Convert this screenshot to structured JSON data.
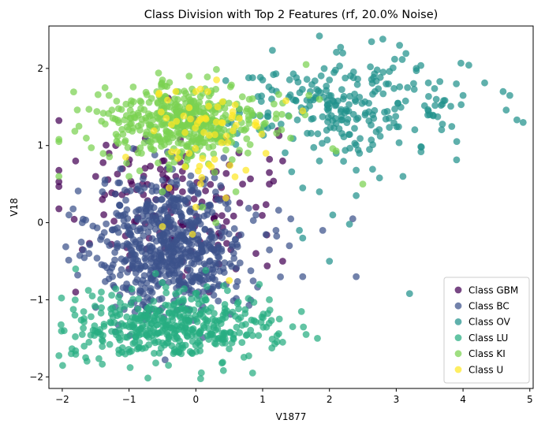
{
  "chart_data": {
    "type": "scatter",
    "title": "Class Division with Top 2 Features (rf, 20.0% Noise)",
    "xlabel": "V1877",
    "ylabel": "V18",
    "xlim": [
      -2.2,
      5.05
    ],
    "ylim": [
      -2.15,
      2.55
    ],
    "xticks": [
      -2,
      -1,
      0,
      1,
      2,
      3,
      4,
      5
    ],
    "yticks": [
      -2,
      -1,
      0,
      1,
      2
    ],
    "grid": false,
    "legend_position": "lower-right",
    "point_alpha": 0.72,
    "series": [
      {
        "name": "Class GBM",
        "color": "#440154",
        "cluster": {
          "cx": -0.4,
          "cy": 0.35,
          "sx": 0.8,
          "sy": 0.5,
          "count": 120
        },
        "points": [
          [
            -1.8,
            0.8
          ],
          [
            -1.5,
            0.6
          ],
          [
            -1.3,
            0.9
          ],
          [
            -1.1,
            0.7
          ],
          [
            -0.8,
            0.5
          ],
          [
            -0.6,
            0.3
          ],
          [
            -0.5,
            0.8
          ],
          [
            -0.3,
            0.6
          ],
          [
            -0.2,
            0.4
          ],
          [
            0.1,
            0.55
          ],
          [
            0.3,
            0.3
          ],
          [
            0.5,
            0.75
          ],
          [
            0.7,
            0.5
          ],
          [
            0.9,
            0.2
          ],
          [
            1.1,
            0.65
          ],
          [
            1.3,
            0.8
          ],
          [
            1.1,
            0.5
          ],
          [
            -1.7,
            -0.35
          ],
          [
            -1.8,
            -0.9
          ],
          [
            -1.0,
            -0.6
          ],
          [
            -0.7,
            -0.2
          ],
          [
            -0.2,
            -0.5
          ],
          [
            0.2,
            -0.9
          ],
          [
            0.6,
            -0.6
          ],
          [
            0.9,
            -0.4
          ],
          [
            1.3,
            -0.5
          ],
          [
            -1.2,
            1.0
          ],
          [
            -0.9,
            0.95
          ],
          [
            -0.4,
            0.2
          ],
          [
            -1.4,
            0.3
          ]
        ]
      },
      {
        "name": "Class BC",
        "color": "#3b528b",
        "cluster": {
          "cx": -0.35,
          "cy": -0.3,
          "sx": 0.55,
          "sy": 0.45,
          "count": 650
        },
        "points": [
          [
            -1.9,
            0.1
          ],
          [
            -1.7,
            0.0
          ],
          [
            -1.6,
            -0.4
          ],
          [
            1.6,
            -0.7
          ],
          [
            1.4,
            -0.3
          ],
          [
            1.2,
            -0.1
          ],
          [
            0.9,
            0.1
          ],
          [
            2.4,
            -0.7
          ],
          [
            2.35,
            0.05
          ],
          [
            1.9,
            -0.1
          ],
          [
            -1.5,
            -1.1
          ],
          [
            -1.4,
            0.4
          ]
        ]
      },
      {
        "name": "Class OV",
        "color": "#21918c",
        "cluster": {
          "cx": 2.3,
          "cy": 1.5,
          "sx": 0.9,
          "sy": 0.3,
          "count": 240
        },
        "points": [
          [
            1.85,
            2.42
          ],
          [
            2.8,
            2.38
          ],
          [
            3.05,
            2.3
          ],
          [
            4.6,
            1.7
          ],
          [
            4.7,
            1.65
          ],
          [
            4.0,
            1.65
          ],
          [
            3.6,
            1.6
          ],
          [
            3.5,
            1.4
          ],
          [
            3.1,
            0.6
          ],
          [
            2.6,
            0.95
          ],
          [
            2.45,
            0.9
          ],
          [
            2.1,
            0.9
          ],
          [
            1.85,
            0.8
          ],
          [
            1.6,
            0.45
          ],
          [
            1.85,
            0.4
          ],
          [
            2.05,
            0.1
          ],
          [
            2.4,
            0.35
          ],
          [
            2.4,
            0.68
          ],
          [
            2.75,
            0.58
          ],
          [
            2.3,
            -0.02
          ],
          [
            2.0,
            -0.5
          ],
          [
            1.55,
            -0.1
          ],
          [
            1.6,
            -0.2
          ],
          [
            3.2,
            -0.92
          ],
          [
            1.0,
            1.85
          ],
          [
            0.85,
            1.88
          ],
          [
            1.2,
            1.93
          ],
          [
            2.0,
            1.85
          ],
          [
            2.2,
            2.2
          ],
          [
            3.3,
            2.0
          ],
          [
            3.9,
            1.8
          ]
        ]
      },
      {
        "name": "Class LU",
        "color": "#27ad81",
        "cluster": {
          "cx": -0.35,
          "cy": -1.35,
          "sx": 0.75,
          "sy": 0.22,
          "count": 420
        },
        "points": [
          [
            -1.6,
            -1.55
          ],
          [
            -1.7,
            -1.45
          ],
          [
            -1.8,
            -0.6
          ],
          [
            -1.65,
            -1.75
          ],
          [
            1.45,
            -1.35
          ],
          [
            1.65,
            -1.45
          ],
          [
            1.82,
            -1.5
          ],
          [
            1.3,
            -1.55
          ],
          [
            0.85,
            -1.95
          ],
          [
            -0.6,
            -1.82
          ],
          [
            1.1,
            -1.0
          ],
          [
            0.95,
            -0.8
          ],
          [
            -1.55,
            -0.95
          ],
          [
            1.25,
            -1.25
          ]
        ]
      },
      {
        "name": "Class KI",
        "color": "#7ad151",
        "cluster": {
          "cx": -0.2,
          "cy": 1.3,
          "sx": 0.6,
          "sy": 0.25,
          "count": 420
        },
        "points": [
          [
            -1.75,
            1.25
          ],
          [
            -1.6,
            1.47
          ],
          [
            -1.3,
            1.65
          ],
          [
            -0.5,
            1.85
          ],
          [
            -0.1,
            1.9
          ],
          [
            0.3,
            1.73
          ],
          [
            0.8,
            1.6
          ],
          [
            1.65,
            2.05
          ],
          [
            1.3,
            1.55
          ],
          [
            1.2,
            1.35
          ],
          [
            2.05,
            0.96
          ],
          [
            1.85,
            1.6
          ],
          [
            2.1,
            0.93
          ],
          [
            2.5,
            0.5
          ],
          [
            -0.5,
            0.4
          ],
          [
            0.1,
            0.2
          ],
          [
            0.3,
            0.0
          ],
          [
            -1.0,
            0.6
          ],
          [
            0.6,
            0.4
          ]
        ]
      },
      {
        "name": "Class U",
        "color": "#fde725",
        "cluster": {
          "cx": 0.1,
          "cy": 1.1,
          "sx": 0.5,
          "sy": 0.35,
          "count": 55
        },
        "points": [
          [
            -0.55,
            1.68
          ],
          [
            -0.3,
            1.7
          ],
          [
            0.0,
            1.7
          ],
          [
            0.65,
            1.35
          ],
          [
            1.35,
            1.58
          ],
          [
            1.6,
            1.45
          ],
          [
            0.9,
            1.3
          ],
          [
            -0.1,
            0.9
          ],
          [
            0.2,
            0.75
          ],
          [
            -0.4,
            0.45
          ],
          [
            0.0,
            0.2
          ],
          [
            -0.5,
            -0.05
          ],
          [
            -0.05,
            -0.15
          ],
          [
            0.5,
            -0.75
          ],
          [
            0.45,
            0.32
          ],
          [
            0.75,
            0.68
          ],
          [
            1.05,
            0.9
          ],
          [
            -1.05,
            0.85
          ]
        ]
      }
    ]
  }
}
